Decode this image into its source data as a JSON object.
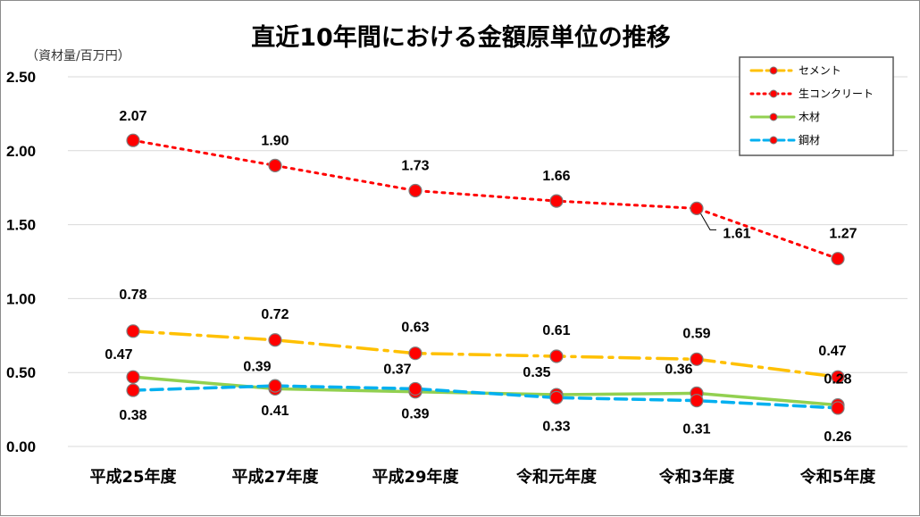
{
  "chart_data": {
    "type": "line",
    "title": "直近10年間における金額原単位の推移",
    "ylabel": "（資材量/百万円）",
    "xlabel": "",
    "categories": [
      "平成25年度",
      "平成27年度",
      "平成29年度",
      "令和元年度",
      "令和3年度",
      "令和5年度"
    ],
    "ylim": [
      0,
      2.5
    ],
    "yticks": [
      "0.00",
      "0.50",
      "1.00",
      "1.50",
      "2.00",
      "2.50"
    ],
    "grid": true,
    "legend_position": "top-right",
    "series": [
      {
        "name": "セメント",
        "values": [
          0.78,
          0.72,
          0.63,
          0.61,
          0.59,
          0.47
        ],
        "labels": [
          "0.78",
          "0.72",
          "0.63",
          "0.61",
          "0.59",
          "0.47"
        ],
        "color": "#ffc000",
        "dash": "dash-dot"
      },
      {
        "name": "生コンクリート",
        "values": [
          2.07,
          1.9,
          1.73,
          1.66,
          1.61,
          1.27
        ],
        "labels": [
          "2.07",
          "1.90",
          "1.73",
          "1.66",
          "1.61",
          "1.27"
        ],
        "color": "#ff0000",
        "dash": "dotted"
      },
      {
        "name": "木材",
        "values": [
          0.47,
          0.39,
          0.37,
          0.35,
          0.36,
          0.28
        ],
        "labels": [
          "0.47",
          "0.39",
          "0.37",
          "0.35",
          "0.36",
          "0.28"
        ],
        "color": "#92d050",
        "dash": "solid"
      },
      {
        "name": "鋼材",
        "values": [
          0.38,
          0.41,
          0.39,
          0.33,
          0.31,
          0.26
        ],
        "labels": [
          "0.38",
          "0.41",
          "0.39",
          "0.33",
          "0.31",
          "0.26"
        ],
        "color": "#00b0f0",
        "dash": "dashed"
      }
    ]
  }
}
